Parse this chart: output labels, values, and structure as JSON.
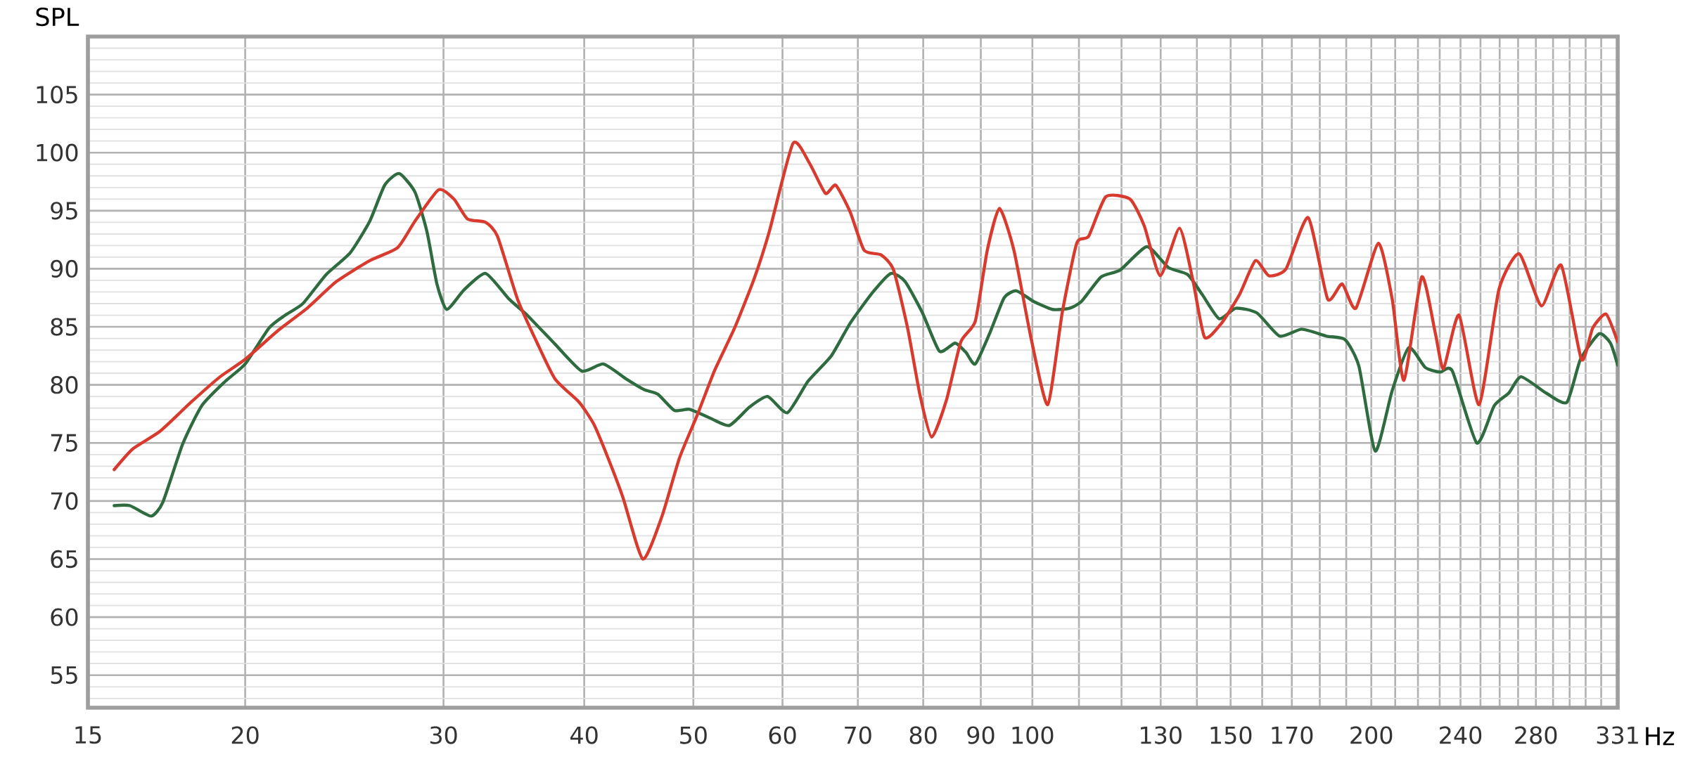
{
  "chart_data": {
    "type": "line",
    "xlabel": "Hz",
    "ylabel": "SPL",
    "log": "x",
    "xlim": [
      14.5,
      331
    ],
    "ylim": [
      52.2,
      110
    ],
    "xticks": [
      {
        "value": 14.5,
        "label": "15"
      },
      20,
      30,
      40,
      50,
      60,
      70,
      80,
      90,
      100,
      {
        "value": 110,
        "label": null
      },
      {
        "value": 120,
        "label": null
      },
      130,
      {
        "value": 140,
        "label": null
      },
      150,
      {
        "value": 160,
        "label": null
      },
      170,
      {
        "value": 180,
        "label": null
      },
      {
        "value": 190,
        "label": null
      },
      200,
      {
        "value": 210,
        "label": null
      },
      {
        "value": 220,
        "label": null
      },
      {
        "value": 230,
        "label": null
      },
      240,
      {
        "value": 250,
        "label": null
      },
      {
        "value": 260,
        "label": null
      },
      {
        "value": 270,
        "label": null
      },
      280,
      {
        "value": 290,
        "label": null
      },
      {
        "value": 300,
        "label": null
      },
      {
        "value": 310,
        "label": null
      },
      {
        "value": 320,
        "label": null
      },
      331
    ],
    "yticks": [
      55,
      60,
      65,
      70,
      75,
      80,
      85,
      90,
      95,
      100,
      105
    ],
    "grid": true,
    "series": [
      {
        "color": "#2e6b3e",
        "x": [
          15.3,
          15.8,
          16.5,
          16.9,
          17.6,
          18.3,
          19.2,
          20,
          21.0,
          21.7,
          22.5,
          23.6,
          24.8,
          25.8,
          26.6,
          27.4,
          28.3,
          29.0,
          29.6,
          30.2,
          31.3,
          32.7,
          34.3,
          35.6,
          37.7,
          39.8,
          41.6,
          43.6,
          45.2,
          46.5,
          48.1,
          49.6,
          51.6,
          53.8,
          56.1,
          58.2,
          60.6,
          63.2,
          66.3,
          68.9,
          72.2,
          74.9,
          77.1,
          79.9,
          82.7,
          85.4,
          87.3,
          89.0,
          91.7,
          94.4,
          96.8,
          100.2,
          104.2,
          107.9,
          110.6,
          115.1,
          119.7,
          126.4,
          132.1,
          137.4,
          141.5,
          146.5,
          151.6,
          158.3,
          165.8,
          173.5,
          182.5,
          189.5,
          195.0,
          201.6,
          208.7,
          215.9,
          223.3,
          230.2,
          236.0,
          248.1,
          257.1,
          264.9,
          271.7,
          285.9,
          298.3,
          306.7,
          318.6,
          326.1,
          331
        ],
        "values": [
          69.6,
          69.6,
          68.7,
          69.9,
          74.9,
          78.2,
          80.3,
          81.8,
          84.9,
          86.0,
          87.0,
          89.5,
          91.4,
          94.1,
          97.2,
          98.2,
          96.6,
          93.2,
          88.7,
          86.5,
          88.2,
          89.6,
          87.4,
          86.0,
          83.5,
          81.2,
          81.8,
          80.5,
          79.6,
          79.2,
          77.8,
          77.9,
          77.2,
          76.5,
          78.1,
          79.0,
          77.6,
          80.3,
          82.5,
          85.3,
          88.0,
          89.6,
          88.9,
          86.2,
          82.9,
          83.6,
          82.8,
          81.8,
          84.5,
          87.5,
          88.1,
          87.2,
          86.5,
          86.6,
          87.2,
          89.3,
          89.9,
          91.9,
          90.1,
          89.5,
          87.8,
          85.7,
          86.6,
          86.2,
          84.2,
          84.8,
          84.2,
          83.9,
          81.6,
          74.3,
          79.5,
          83.2,
          81.5,
          81.1,
          81.2,
          75.0,
          78.2,
          79.3,
          80.7,
          79.3,
          78.5,
          82.2,
          84.4,
          83.6,
          81.7
        ]
      },
      {
        "color": "#d93a2e",
        "x": [
          15.3,
          15.9,
          16.8,
          17.9,
          19.0,
          20,
          21.4,
          22.7,
          24.1,
          25.8,
          27.3,
          28.3,
          29.7,
          30.65,
          31.5,
          32.7,
          33.5,
          34.9,
          36.3,
          37.7,
          39.6,
          40.8,
          42.0,
          43.3,
          45.1,
          46.9,
          48.6,
          50.4,
          52.2,
          54.4,
          56.6,
          58.4,
          61.3,
          63.4,
          65.5,
          66.9,
          68.9,
          70.9,
          73.4,
          75.3,
          77.5,
          79.5,
          81.4,
          83.9,
          86.4,
          89.0,
          91.2,
          93.5,
          96.3,
          99.7,
          103.2,
          106.3,
          109.5,
          112.2,
          116.2,
          122.1,
          125.7,
          129.9,
          135.1,
          138.8,
          142.2,
          147.2,
          152.8,
          157.8,
          162.2,
          168.0,
          175.8,
          182.9,
          188.4,
          193.8,
          202.9,
          208.7,
          213.8,
          221.7,
          227.9,
          231.8,
          239.3,
          249.3,
          259.6,
          270.6,
          283.2,
          294.9,
          307.3,
          314.5,
          323.2,
          331
        ],
        "values": [
          72.7,
          74.5,
          76.0,
          78.5,
          80.7,
          82.2,
          84.7,
          86.6,
          88.9,
          90.7,
          91.8,
          94.1,
          96.8,
          96.0,
          94.3,
          94.0,
          92.8,
          87.4,
          83.7,
          80.5,
          78.5,
          76.6,
          73.7,
          70.3,
          65.0,
          68.7,
          73.7,
          77.4,
          81.2,
          84.9,
          89.1,
          93.2,
          100.8,
          99.1,
          96.5,
          97.2,
          94.9,
          91.6,
          91.2,
          89.9,
          84.9,
          79.1,
          75.5,
          78.7,
          83.7,
          85.5,
          91.6,
          95.2,
          91.6,
          84.1,
          78.3,
          86.2,
          92.2,
          92.8,
          96.2,
          96.0,
          93.7,
          89.4,
          93.5,
          89.1,
          84.1,
          85.3,
          87.8,
          90.7,
          89.4,
          90.0,
          94.4,
          87.4,
          88.7,
          86.6,
          92.2,
          87.4,
          80.4,
          89.3,
          84.5,
          81.4,
          86.0,
          78.3,
          88.2,
          91.3,
          86.8,
          90.3,
          82.2,
          84.9,
          86.1,
          83.7
        ]
      }
    ]
  }
}
